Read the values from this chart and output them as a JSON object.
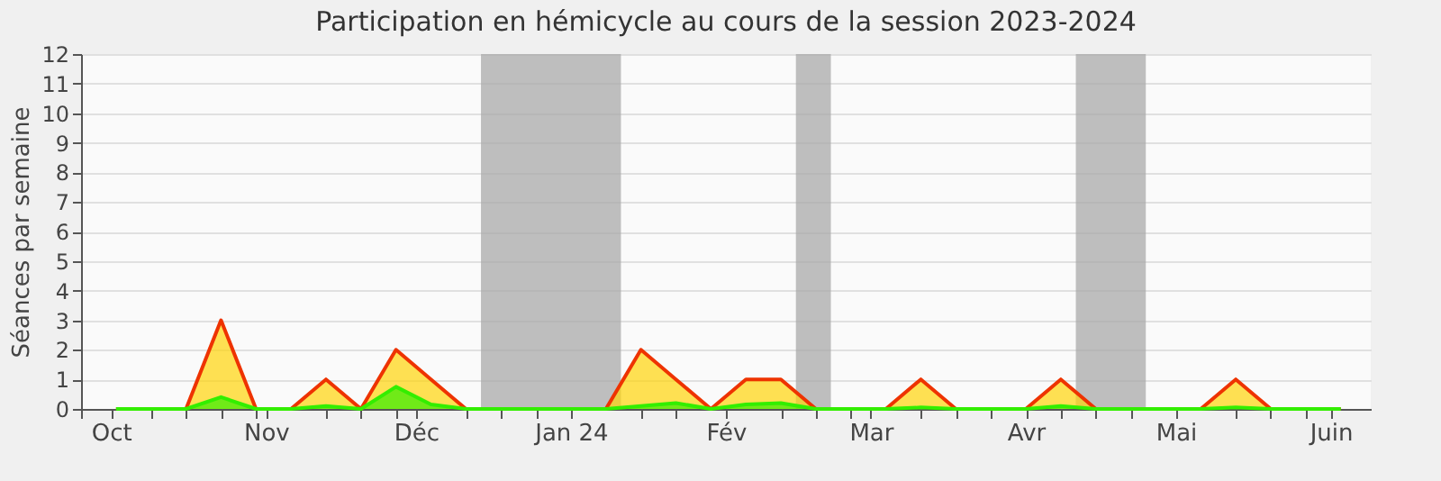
{
  "chart_data": {
    "type": "area",
    "title": "Participation en hémicycle au cours de la session 2023-2024",
    "ylabel": "Séances par semaine",
    "x": [
      "2023-10-02",
      "2023-10-09",
      "2023-10-16",
      "2023-10-23",
      "2023-10-30",
      "2023-11-06",
      "2023-11-13",
      "2023-11-20",
      "2023-11-27",
      "2023-12-04",
      "2023-12-11",
      "2023-12-18",
      "2023-12-25",
      "2024-01-01",
      "2024-01-08",
      "2024-01-15",
      "2024-01-22",
      "2024-01-29",
      "2024-02-05",
      "2024-02-12",
      "2024-02-19",
      "2024-02-26",
      "2024-03-04",
      "2024-03-11",
      "2024-03-18",
      "2024-03-25",
      "2024-04-01",
      "2024-04-08",
      "2024-04-15",
      "2024-04-22",
      "2024-04-29",
      "2024-05-06",
      "2024-05-13",
      "2024-05-20",
      "2024-05-27",
      "2024-06-03"
    ],
    "series": [
      {
        "color": "#ffd40a",
        "values": [
          0,
          0,
          0,
          3,
          0,
          0,
          1,
          0,
          2,
          1,
          0,
          0,
          0,
          0,
          0,
          2,
          1,
          0,
          1,
          1,
          0,
          0,
          0,
          1,
          0,
          0,
          0,
          1,
          0,
          0,
          0,
          0,
          1,
          0,
          0,
          0
        ]
      },
      {
        "color": "#33ee00",
        "values": [
          0,
          0,
          0,
          0.4,
          0,
          0,
          0.1,
          0,
          0.75,
          0.15,
          0,
          0,
          0,
          0,
          0,
          0.1,
          0.2,
          0,
          0.15,
          0.2,
          0,
          0,
          0,
          0.05,
          0,
          0,
          0,
          0.1,
          0,
          0,
          0,
          0,
          0.05,
          0,
          0,
          0
        ]
      }
    ],
    "xlim": [
      "2023-09-25",
      "2024-06-09"
    ],
    "xticks": [
      {
        "value": "2023-09-25",
        "label": null
      },
      {
        "value": "2023-10-01",
        "label": "Oct"
      },
      {
        "value": "2023-10-09",
        "label": null
      },
      {
        "value": "2023-10-16",
        "label": null
      },
      {
        "value": "2023-10-23",
        "label": null
      },
      {
        "value": "2023-10-30",
        "label": null
      },
      {
        "value": "2023-11-01",
        "label": "Nov"
      },
      {
        "value": "2023-11-13",
        "label": null
      },
      {
        "value": "2023-11-20",
        "label": null
      },
      {
        "value": "2023-11-27",
        "label": null
      },
      {
        "value": "2023-12-01",
        "label": "Déc"
      },
      {
        "value": "2023-12-11",
        "label": null
      },
      {
        "value": "2023-12-18",
        "label": null
      },
      {
        "value": "2023-12-25",
        "label": null
      },
      {
        "value": "2024-01-01",
        "label": "Jan 24"
      },
      {
        "value": "2024-01-15",
        "label": null
      },
      {
        "value": "2024-01-22",
        "label": null
      },
      {
        "value": "2024-02-01",
        "label": "Fév"
      },
      {
        "value": "2024-02-12",
        "label": null
      },
      {
        "value": "2024-02-19",
        "label": null
      },
      {
        "value": "2024-02-26",
        "label": null
      },
      {
        "value": "2024-03-01",
        "label": "Mar"
      },
      {
        "value": "2024-03-11",
        "label": null
      },
      {
        "value": "2024-03-18",
        "label": null
      },
      {
        "value": "2024-03-25",
        "label": null
      },
      {
        "value": "2024-04-01",
        "label": "Avr"
      },
      {
        "value": "2024-04-08",
        "label": null
      },
      {
        "value": "2024-04-15",
        "label": null
      },
      {
        "value": "2024-04-22",
        "label": null
      },
      {
        "value": "2024-05-01",
        "label": "Mai"
      },
      {
        "value": "2024-05-13",
        "label": null
      },
      {
        "value": "2024-05-20",
        "label": null
      },
      {
        "value": "2024-05-27",
        "label": null
      },
      {
        "value": "2024-06-01",
        "label": "Juin"
      }
    ],
    "ylim": [
      0,
      12
    ],
    "yticks": [
      0,
      1,
      2,
      3,
      4,
      5,
      6,
      7,
      8,
      9,
      10,
      11,
      12
    ],
    "bands": [
      {
        "axis": "x",
        "from": "2023-12-14",
        "to": "2024-01-11",
        "color": "#aaaaaa"
      },
      {
        "axis": "x",
        "from": "2024-02-15",
        "to": "2024-02-22",
        "color": "#aaaaaa"
      },
      {
        "axis": "x",
        "from": "2024-04-11",
        "to": "2024-04-25",
        "color": "#aaaaaa"
      }
    ],
    "grid": "y"
  }
}
